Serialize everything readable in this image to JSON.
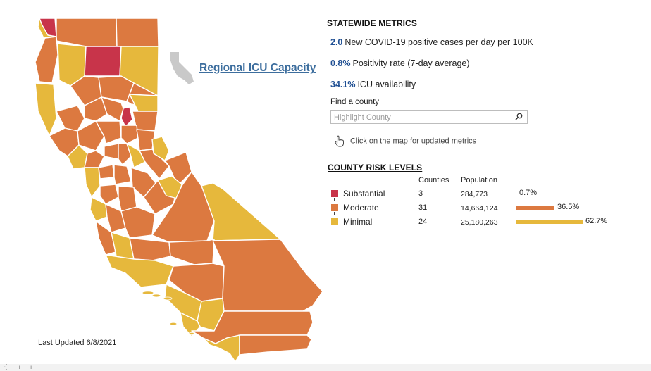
{
  "map": {
    "colors": {
      "substantial": "#c8344a",
      "moderate": "#dc7940",
      "minimal": "#e6b83c",
      "mini_icon": "#c9c9c9"
    },
    "region_link": "Regional ICU Capacity",
    "last_updated": "Last Updated 6/8/2021"
  },
  "statewide": {
    "heading": "STATEWIDE METRICS",
    "metrics": [
      {
        "value": "2.0",
        "label": "New COVID-19 positive cases per day per 100K"
      },
      {
        "value": "0.8%",
        "label": "Positivity rate (7-day average)"
      },
      {
        "value": "34.1%",
        "label": "ICU availability"
      }
    ]
  },
  "search": {
    "label": "Find a county",
    "placeholder": "Highlight County",
    "icon": "search-icon"
  },
  "hint": {
    "text": "Click on the map for updated metrics",
    "icon": "hand-pointer-icon"
  },
  "risk": {
    "heading": "COUNTY RISK LEVELS",
    "columns": {
      "counties": "Counties",
      "population": "Population"
    },
    "rows": [
      {
        "level": "Substantial",
        "counties": "3",
        "population": "284,773",
        "pct": "0.7%",
        "share": 0.7,
        "color": "#c8344a"
      },
      {
        "level": "Moderate",
        "counties": "31",
        "population": "14,664,124",
        "pct": "36.5%",
        "share": 36.5,
        "color": "#dc7940"
      },
      {
        "level": "Minimal",
        "counties": "24",
        "population": "25,180,263",
        "pct": "62.7%",
        "share": 62.7,
        "color": "#e6b83c"
      }
    ]
  }
}
